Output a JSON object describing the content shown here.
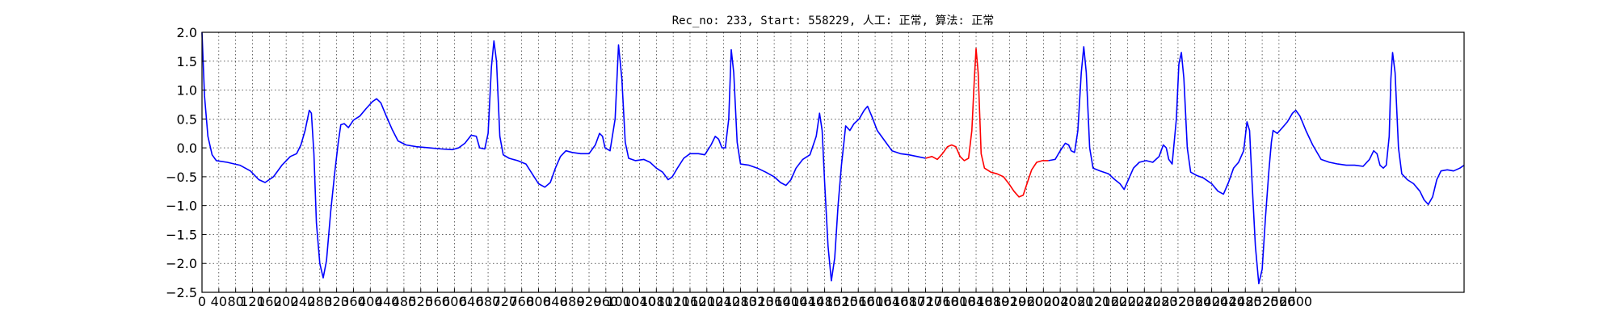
{
  "chart_data": {
    "type": "line",
    "title": "Rec_no: 233, Start: 558229, 人工: 正常, 算法: 正常",
    "xlabel": "",
    "ylabel": "",
    "grid": true,
    "legend": "none",
    "xlim": [
      0,
      3000
    ],
    "ylim": [
      -2.5,
      2.0
    ],
    "x_tick_values": [
      0,
      40,
      80,
      120,
      160,
      200,
      240,
      280,
      320,
      360,
      400,
      440,
      480,
      520,
      560,
      600,
      640,
      680,
      720,
      760,
      800,
      840,
      880,
      920,
      960,
      1000,
      1040,
      1080,
      1120,
      1160,
      1200,
      1240,
      1280,
      1320,
      1360,
      1400,
      1440,
      1480,
      1520,
      1560,
      1600,
      1640,
      1680,
      1720,
      1760,
      1800,
      1840,
      1880,
      1920,
      1960,
      2000,
      2040,
      2080,
      2120,
      2160,
      2200,
      2240,
      2280,
      2320,
      2360,
      2400,
      2440,
      2480,
      2520,
      2560,
      2600
    ],
    "y_ticks": [
      "2.0",
      "1.5",
      "1.0",
      "0.5",
      "0.0",
      "−0.5",
      "−1.0",
      "−1.5",
      "−2.0",
      "−2.5"
    ],
    "y_tick_values": [
      2.0,
      1.5,
      1.0,
      0.5,
      0.0,
      -0.5,
      -1.0,
      -1.5,
      -2.0,
      -2.5
    ],
    "series": [
      {
        "color": "#0000ff",
        "points": [
          [
            0,
            2.0
          ],
          [
            6,
            0.9
          ],
          [
            14,
            0.2
          ],
          [
            24,
            -0.12
          ],
          [
            34,
            -0.22
          ],
          [
            60,
            -0.25
          ],
          [
            90,
            -0.3
          ],
          [
            115,
            -0.4
          ],
          [
            135,
            -0.55
          ],
          [
            150,
            -0.6
          ],
          [
            170,
            -0.5
          ],
          [
            190,
            -0.3
          ],
          [
            210,
            -0.15
          ],
          [
            225,
            -0.1
          ],
          [
            235,
            0.05
          ],
          [
            245,
            0.3
          ],
          [
            255,
            0.65
          ],
          [
            260,
            0.6
          ],
          [
            266,
            -0.1
          ],
          [
            272,
            -1.3
          ],
          [
            280,
            -2.0
          ],
          [
            288,
            -2.25
          ],
          [
            296,
            -1.95
          ],
          [
            306,
            -1.1
          ],
          [
            316,
            -0.4
          ],
          [
            324,
            0.1
          ],
          [
            330,
            0.4
          ],
          [
            338,
            0.42
          ],
          [
            348,
            0.35
          ],
          [
            360,
            0.48
          ],
          [
            375,
            0.55
          ],
          [
            390,
            0.68
          ],
          [
            405,
            0.8
          ],
          [
            415,
            0.85
          ],
          [
            425,
            0.78
          ],
          [
            438,
            0.55
          ],
          [
            452,
            0.32
          ],
          [
            466,
            0.12
          ],
          [
            485,
            0.05
          ],
          [
            510,
            0.02
          ],
          [
            540,
            0.0
          ],
          [
            570,
            -0.02
          ],
          [
            595,
            -0.03
          ],
          [
            610,
            0.0
          ],
          [
            625,
            0.08
          ],
          [
            640,
            0.22
          ],
          [
            652,
            0.2
          ],
          [
            660,
            0.0
          ],
          [
            672,
            -0.02
          ],
          [
            680,
            0.25
          ],
          [
            688,
            1.4
          ],
          [
            694,
            1.85
          ],
          [
            700,
            1.5
          ],
          [
            708,
            0.2
          ],
          [
            716,
            -0.12
          ],
          [
            730,
            -0.18
          ],
          [
            750,
            -0.22
          ],
          [
            770,
            -0.28
          ],
          [
            785,
            -0.45
          ],
          [
            800,
            -0.62
          ],
          [
            815,
            -0.68
          ],
          [
            828,
            -0.6
          ],
          [
            840,
            -0.35
          ],
          [
            852,
            -0.15
          ],
          [
            865,
            -0.05
          ],
          [
            880,
            -0.08
          ],
          [
            900,
            -0.1
          ],
          [
            920,
            -0.1
          ],
          [
            935,
            0.05
          ],
          [
            945,
            0.25
          ],
          [
            952,
            0.2
          ],
          [
            958,
            0.0
          ],
          [
            970,
            -0.05
          ],
          [
            982,
            0.5
          ],
          [
            990,
            1.78
          ],
          [
            998,
            1.2
          ],
          [
            1006,
            0.1
          ],
          [
            1014,
            -0.18
          ],
          [
            1030,
            -0.22
          ],
          [
            1050,
            -0.2
          ],
          [
            1065,
            -0.25
          ],
          [
            1080,
            -0.35
          ],
          [
            1095,
            -0.42
          ],
          [
            1108,
            -0.55
          ],
          [
            1118,
            -0.5
          ],
          [
            1130,
            -0.35
          ],
          [
            1145,
            -0.18
          ],
          [
            1160,
            -0.1
          ],
          [
            1180,
            -0.1
          ],
          [
            1195,
            -0.12
          ],
          [
            1210,
            0.05
          ],
          [
            1220,
            0.2
          ],
          [
            1228,
            0.15
          ],
          [
            1236,
            0.0
          ],
          [
            1244,
            0.0
          ],
          [
            1252,
            0.5
          ],
          [
            1258,
            1.7
          ],
          [
            1264,
            1.3
          ],
          [
            1272,
            0.1
          ],
          [
            1280,
            -0.28
          ],
          [
            1300,
            -0.3
          ],
          [
            1320,
            -0.35
          ],
          [
            1340,
            -0.42
          ],
          [
            1360,
            -0.5
          ],
          [
            1375,
            -0.6
          ],
          [
            1388,
            -0.65
          ],
          [
            1400,
            -0.55
          ],
          [
            1412,
            -0.35
          ],
          [
            1428,
            -0.2
          ],
          [
            1445,
            -0.12
          ],
          [
            1460,
            0.2
          ],
          [
            1468,
            0.6
          ],
          [
            1474,
            0.3
          ],
          [
            1480,
            -0.6
          ],
          [
            1488,
            -1.7
          ],
          [
            1496,
            -2.3
          ],
          [
            1504,
            -1.9
          ],
          [
            1512,
            -1.0
          ],
          [
            1520,
            -0.3
          ],
          [
            1526,
            0.1
          ],
          [
            1530,
            0.38
          ],
          [
            1540,
            0.3
          ],
          [
            1550,
            0.42
          ],
          [
            1562,
            0.5
          ],
          [
            1574,
            0.65
          ],
          [
            1582,
            0.72
          ],
          [
            1592,
            0.55
          ],
          [
            1605,
            0.3
          ],
          [
            1620,
            0.15
          ],
          [
            1640,
            -0.05
          ],
          [
            1660,
            -0.1
          ],
          [
            1680,
            -0.12
          ],
          [
            1700,
            -0.15
          ],
          [
            1720,
            -0.18
          ]
        ]
      },
      {
        "color": "#ff0000",
        "points": [
          [
            1720,
            -0.18
          ],
          [
            1735,
            -0.15
          ],
          [
            1748,
            -0.2
          ],
          [
            1760,
            -0.1
          ],
          [
            1772,
            0.02
          ],
          [
            1782,
            0.05
          ],
          [
            1792,
            0.02
          ],
          [
            1802,
            -0.15
          ],
          [
            1812,
            -0.22
          ],
          [
            1822,
            -0.18
          ],
          [
            1830,
            0.3
          ],
          [
            1836,
            1.2
          ],
          [
            1840,
            1.72
          ],
          [
            1845,
            1.3
          ],
          [
            1852,
            -0.1
          ],
          [
            1860,
            -0.35
          ],
          [
            1875,
            -0.42
          ],
          [
            1890,
            -0.45
          ],
          [
            1905,
            -0.5
          ],
          [
            1918,
            -0.62
          ],
          [
            1930,
            -0.75
          ],
          [
            1942,
            -0.85
          ],
          [
            1952,
            -0.82
          ],
          [
            1962,
            -0.6
          ],
          [
            1972,
            -0.38
          ],
          [
            1984,
            -0.25
          ],
          [
            1998,
            -0.22
          ],
          [
            2012,
            -0.22
          ]
        ]
      },
      {
        "color": "#0000ff",
        "points": [
          [
            2012,
            -0.22
          ],
          [
            2028,
            -0.2
          ],
          [
            2040,
            -0.05
          ],
          [
            2052,
            0.08
          ],
          [
            2060,
            0.05
          ],
          [
            2066,
            -0.05
          ],
          [
            2074,
            -0.08
          ],
          [
            2082,
            0.3
          ],
          [
            2090,
            1.3
          ],
          [
            2096,
            1.75
          ],
          [
            2102,
            1.3
          ],
          [
            2110,
            0.0
          ],
          [
            2118,
            -0.35
          ],
          [
            2135,
            -0.4
          ],
          [
            2155,
            -0.45
          ],
          [
            2170,
            -0.55
          ],
          [
            2182,
            -0.62
          ],
          [
            2192,
            -0.72
          ],
          [
            2202,
            -0.55
          ],
          [
            2214,
            -0.35
          ],
          [
            2228,
            -0.25
          ],
          [
            2244,
            -0.22
          ],
          [
            2260,
            -0.25
          ],
          [
            2275,
            -0.15
          ],
          [
            2285,
            0.05
          ],
          [
            2292,
            0.0
          ],
          [
            2298,
            -0.2
          ],
          [
            2306,
            -0.28
          ],
          [
            2316,
            0.5
          ],
          [
            2322,
            1.45
          ],
          [
            2328,
            1.65
          ],
          [
            2334,
            1.2
          ],
          [
            2342,
            0.0
          ],
          [
            2350,
            -0.42
          ],
          [
            2365,
            -0.48
          ],
          [
            2380,
            -0.52
          ],
          [
            2400,
            -0.62
          ],
          [
            2415,
            -0.75
          ],
          [
            2428,
            -0.8
          ],
          [
            2440,
            -0.6
          ],
          [
            2452,
            -0.35
          ],
          [
            2464,
            -0.25
          ],
          [
            2476,
            -0.05
          ],
          [
            2484,
            0.45
          ],
          [
            2490,
            0.3
          ],
          [
            2496,
            -0.6
          ],
          [
            2504,
            -1.7
          ],
          [
            2512,
            -2.35
          ],
          [
            2520,
            -2.1
          ],
          [
            2528,
            -1.2
          ],
          [
            2536,
            -0.4
          ],
          [
            2542,
            0.1
          ],
          [
            2546,
            0.3
          ],
          [
            2556,
            0.25
          ],
          [
            2568,
            0.35
          ],
          [
            2580,
            0.45
          ],
          [
            2592,
            0.6
          ],
          [
            2600,
            0.65
          ],
          [
            2610,
            0.55
          ],
          [
            2624,
            0.3
          ],
          [
            2640,
            0.05
          ],
          [
            2660,
            -0.2
          ],
          [
            2680,
            -0.25
          ],
          [
            2700,
            -0.28
          ],
          [
            2720,
            -0.3
          ],
          [
            2740,
            -0.3
          ],
          [
            2760,
            -0.32
          ],
          [
            2775,
            -0.2
          ],
          [
            2785,
            -0.05
          ],
          [
            2793,
            -0.1
          ],
          [
            2800,
            -0.3
          ],
          [
            2808,
            -0.35
          ],
          [
            2815,
            -0.3
          ],
          [
            2822,
            0.2
          ],
          [
            2826,
            1.2
          ],
          [
            2830,
            1.65
          ],
          [
            2836,
            1.3
          ],
          [
            2844,
            0.0
          ],
          [
            2852,
            -0.45
          ],
          [
            2865,
            -0.55
          ],
          [
            2880,
            -0.62
          ],
          [
            2895,
            -0.75
          ],
          [
            2905,
            -0.9
          ],
          [
            2915,
            -0.98
          ],
          [
            2925,
            -0.85
          ],
          [
            2935,
            -0.55
          ],
          [
            2945,
            -0.4
          ],
          [
            2960,
            -0.38
          ],
          [
            2975,
            -0.4
          ],
          [
            2990,
            -0.35
          ],
          [
            3000,
            -0.3
          ]
        ]
      }
    ]
  }
}
